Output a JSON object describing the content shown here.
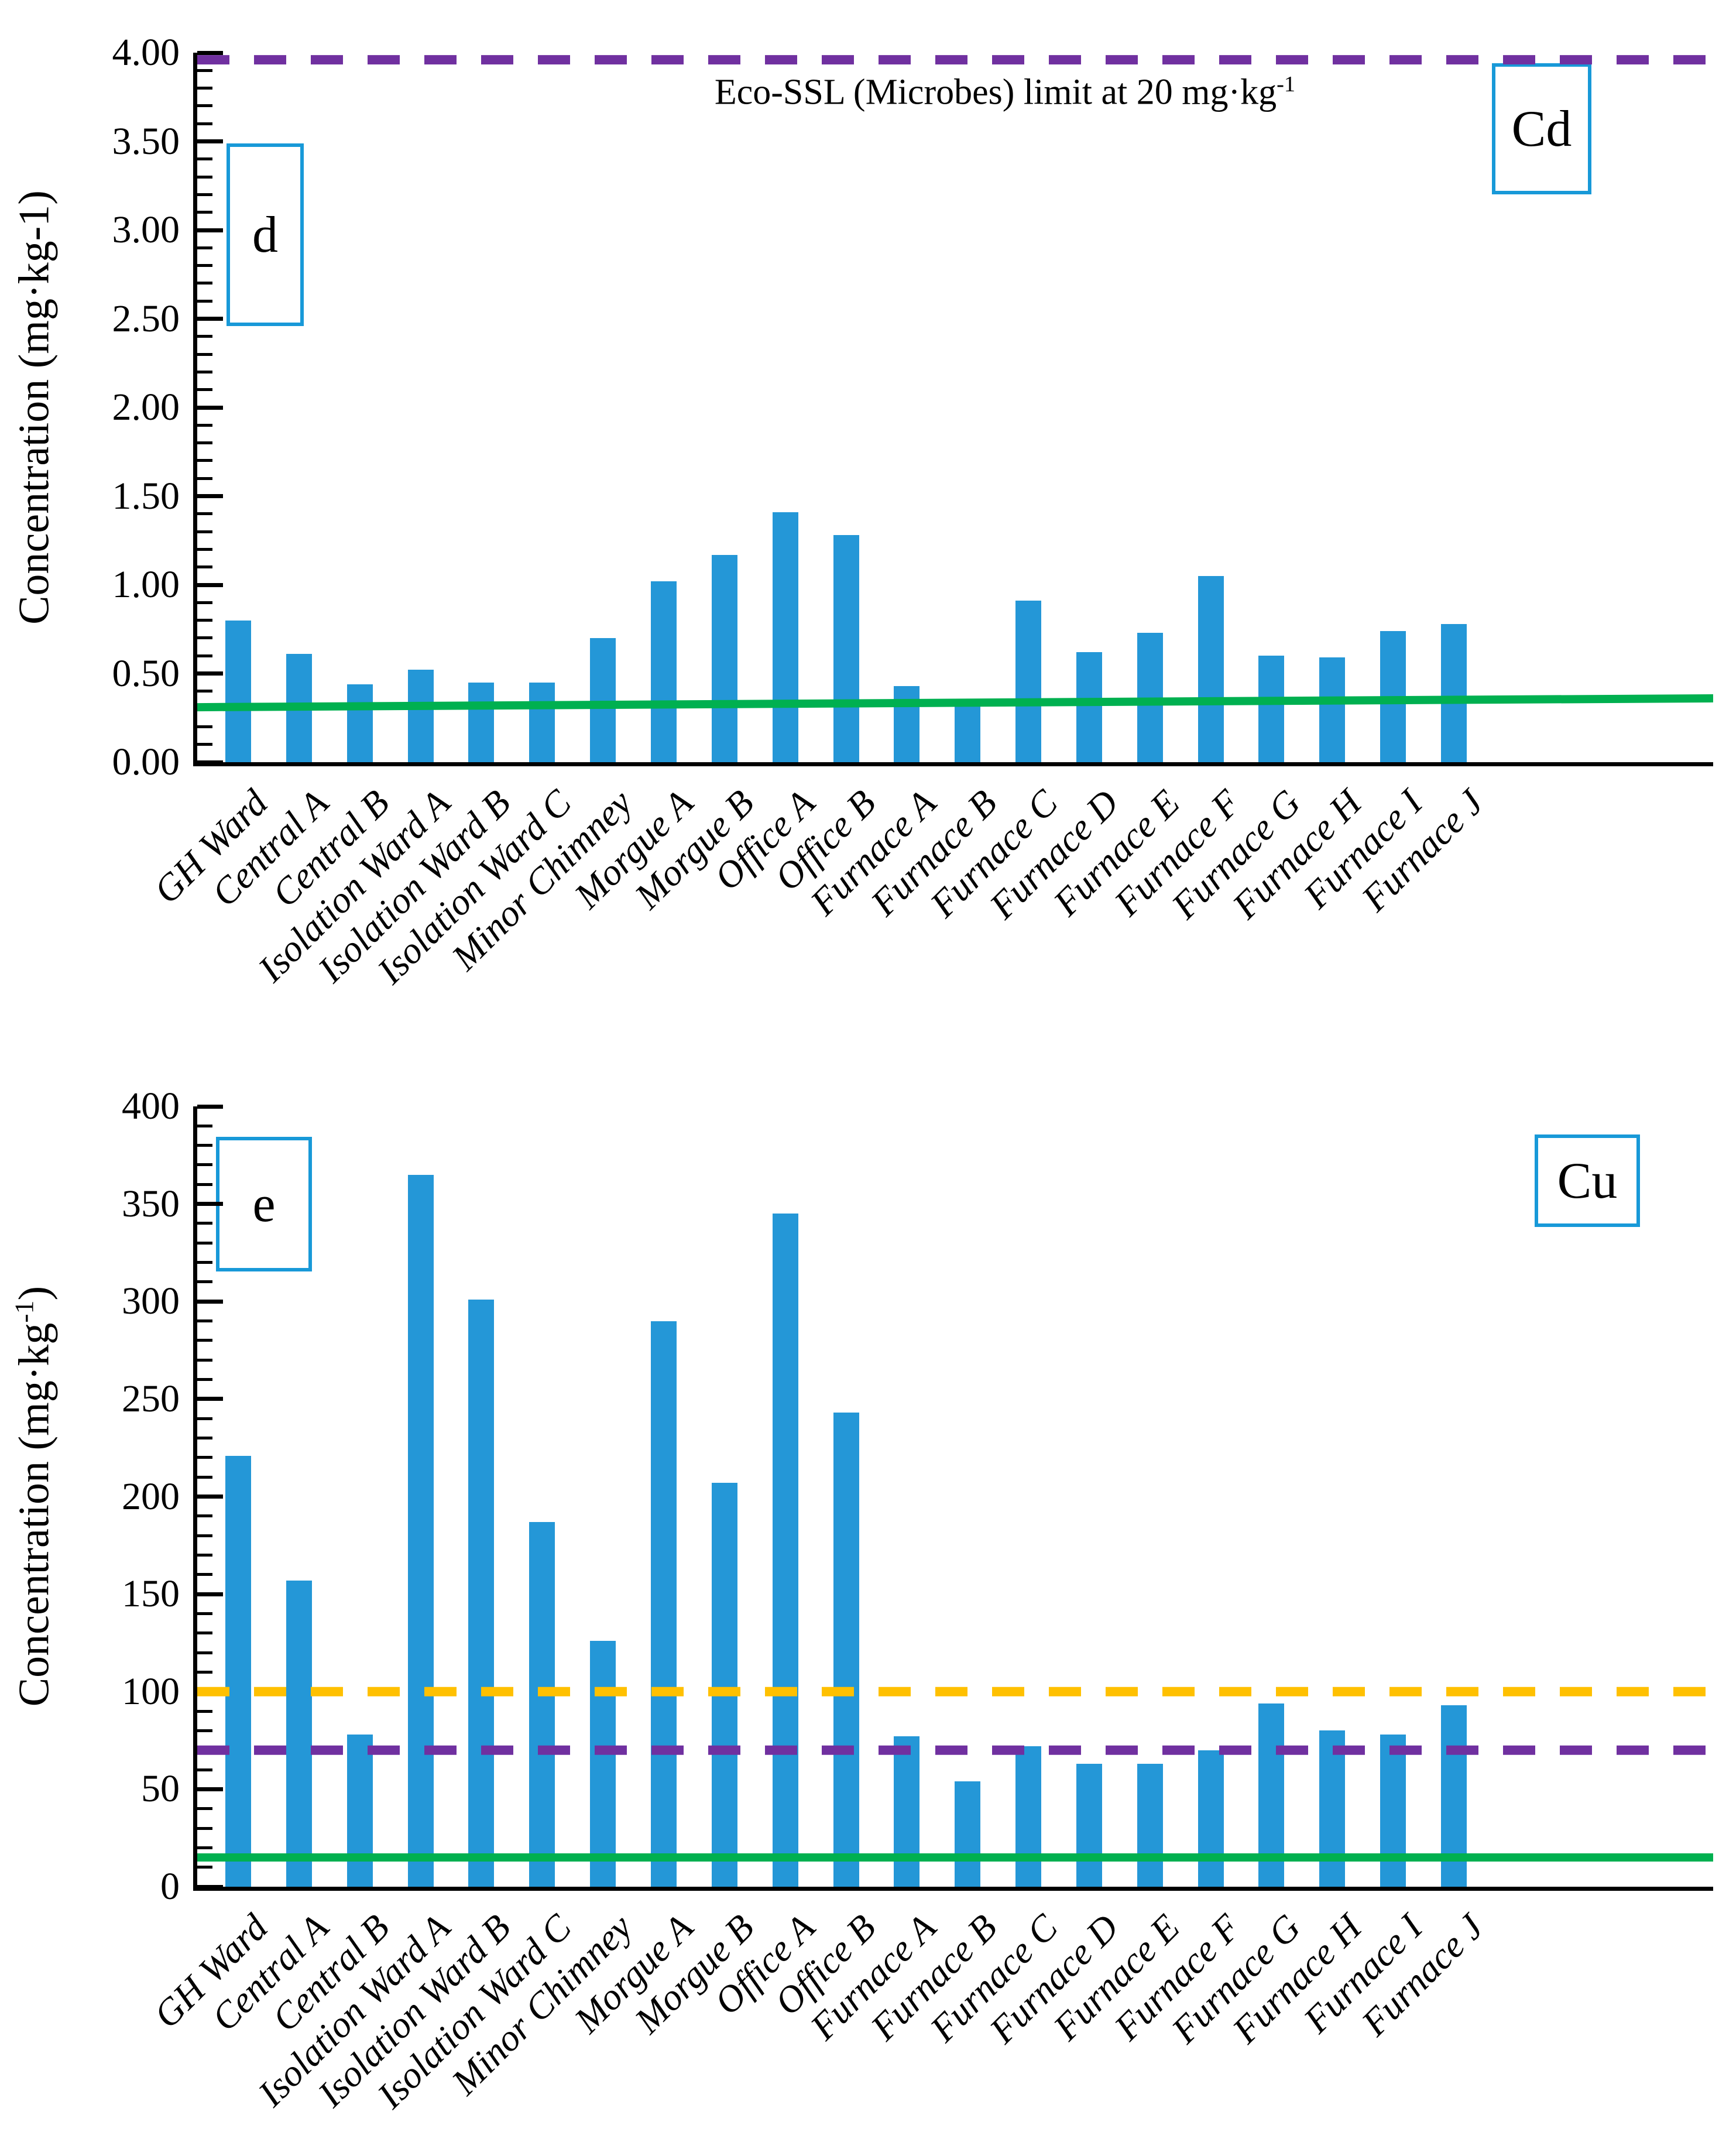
{
  "figure": {
    "background": "#ffffff",
    "text_color": "#000000"
  },
  "colors": {
    "bar_blue": "#2497D7",
    "box_border_blue": "#1899D8",
    "limit_purple": "#7030A0",
    "limit_yellow": "#FFC000",
    "limit_green": "#00B050",
    "axis_black": "#000000"
  },
  "chart_data": [
    {
      "type": "bar",
      "panel_label": "d",
      "element_label": "Cd",
      "annotation_text": "Eco-SSL (Microbes) limit at 20 mg·kg",
      "annotation_sup": "-1",
      "y_title_pre": "Concentration (mg·kg-1)",
      "y_title_sup": "",
      "y_title_post": "",
      "ylim": [
        0,
        4
      ],
      "y_major_tick_labels": [
        "0.00",
        "0.50",
        "1.00",
        "1.50",
        "2.00",
        "2.50",
        "3.00",
        "3.50",
        "4.00"
      ],
      "minors_per_major": 5,
      "grid": false,
      "legend_position": "none",
      "categories": [
        "GH Ward",
        "Central A",
        "Central B",
        "Isolation Ward A",
        "Isolation Ward B",
        "Isolation Ward C",
        "Minor Chimney",
        "Morgue A",
        "Morgue B",
        "Office A",
        "Office B",
        "Furnace A",
        "Furnace B",
        "Furnace C",
        "Furnace D",
        "Furnace E",
        "Furnace F",
        "Furnace G",
        "Furnace H",
        "Furnace I",
        "Furnace J"
      ],
      "values": [
        0.8,
        0.61,
        0.44,
        0.52,
        0.45,
        0.45,
        0.7,
        1.02,
        1.17,
        1.41,
        1.28,
        0.43,
        0.33,
        0.91,
        0.62,
        0.73,
        1.05,
        0.6,
        0.59,
        0.74,
        0.78
      ],
      "ref_lines": [
        {
          "name": "eco-ssl-microbes-limit",
          "style": "dashed",
          "color": "#7030A0",
          "value_start": 3.96,
          "value_end": 3.96
        },
        {
          "name": "background-limit",
          "style": "solid",
          "color": "#00B050",
          "value_start": 0.31,
          "value_end": 0.36
        }
      ]
    },
    {
      "type": "bar",
      "panel_label": "e",
      "element_label": "Cu",
      "annotation_text": "",
      "annotation_sup": "",
      "y_title_pre": "Concentration (mg·kg",
      "y_title_sup": "-1",
      "y_title_post": ")",
      "ylim": [
        0,
        400
      ],
      "y_major_tick_labels": [
        "0",
        "50",
        "100",
        "150",
        "200",
        "250",
        "300",
        "350",
        "400"
      ],
      "minors_per_major": 5,
      "grid": false,
      "legend_position": "none",
      "categories": [
        "GH Ward",
        "Central A",
        "Central B",
        "Isolation Ward A",
        "Isolation Ward B",
        "Isolation Ward C",
        "Minor Chimney",
        "Morgue A",
        "Morgue B",
        "Office A",
        "Office B",
        "Furnace A",
        "Furnace B",
        "Furnace C",
        "Furnace D",
        "Furnace E",
        "Furnace F",
        "Furnace G",
        "Furnace H",
        "Furnace I",
        "Furnace J"
      ],
      "values": [
        221,
        157,
        78,
        365,
        301,
        187,
        126,
        290,
        207,
        345,
        243,
        77,
        54,
        72,
        63,
        63,
        70,
        94,
        80,
        78,
        93
      ],
      "ref_lines": [
        {
          "name": "upper-limit",
          "style": "dashed",
          "color": "#FFC000",
          "value_start": 100,
          "value_end": 100
        },
        {
          "name": "mid-limit",
          "style": "dashed",
          "color": "#7030A0",
          "value_start": 70,
          "value_end": 70
        },
        {
          "name": "background-limit",
          "style": "solid",
          "color": "#00B050",
          "value_start": 15,
          "value_end": 15
        }
      ]
    }
  ]
}
